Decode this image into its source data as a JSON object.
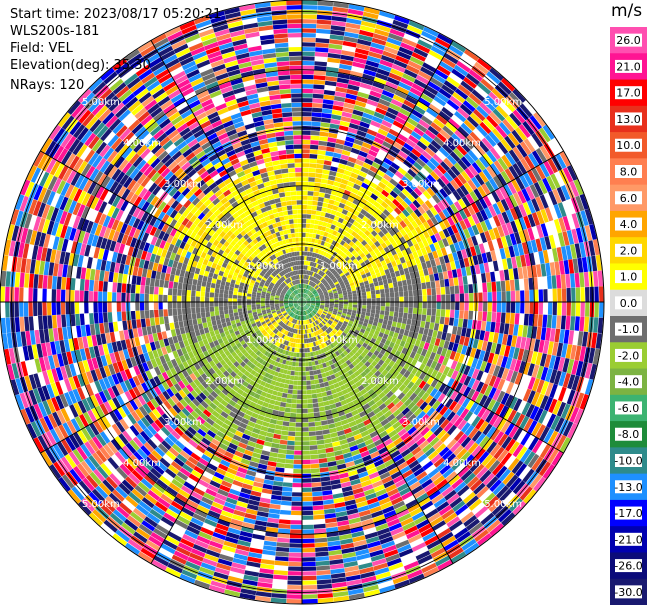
{
  "header": {
    "start_time": "Start time: 2023/08/17 05:20:21",
    "instrument": "WLS200s-181",
    "field": "Field: VEL",
    "elevation": "Elevation(deg): 35.30",
    "nrays": "NRays: 120"
  },
  "chart_data": {
    "type": "heatmap",
    "projection": "polar PPI",
    "nrays": 120,
    "ring_labels": [
      "5.00km",
      "4.00km",
      "3.00km",
      "2.00km",
      "1.00km"
    ],
    "ring_ranges_km": [
      1,
      2,
      3,
      4,
      5
    ],
    "spoke_angles_deg": [
      0,
      30,
      60,
      90,
      120,
      150,
      180,
      210,
      240,
      270,
      300,
      330
    ],
    "colorbar": {
      "unit": "m/s",
      "labels": [
        "26.0",
        "21.0",
        "17.0",
        "13.0",
        "10.0",
        "8.0",
        "6.0",
        "4.0",
        "2.0",
        "1.0",
        "0.0",
        "-1.0",
        "-2.0",
        "-4.0",
        "-6.0",
        "-8.0",
        "-10.0",
        "-13.0",
        "-17.0",
        "-21.0",
        "-26.0",
        "-30.0"
      ],
      "colors": [
        "#ff4fb0",
        "#ff1493",
        "#ff0000",
        "#e8301c",
        "#f25a2a",
        "#ff7f50",
        "#ff9966",
        "#ffa500",
        "#ffd700",
        "#ffff00",
        "#dcdcdc",
        "#6e6e6e",
        "#9acd32",
        "#7cb342",
        "#3cb371",
        "#1e8c3a",
        "#2e8b8b",
        "#1e90ff",
        "#0000ff",
        "#0000b0",
        "#0b0b7a",
        "#191970"
      ]
    },
    "pattern": {
      "inner_low_velocity_km": 0.7,
      "outer_noise_from_km": 2.5,
      "north_sector": "positive (yellow 1.0-2.0)",
      "south_sector": "negative (green -1.0 to -2.0)",
      "near_zero": "grey 0.0"
    }
  }
}
